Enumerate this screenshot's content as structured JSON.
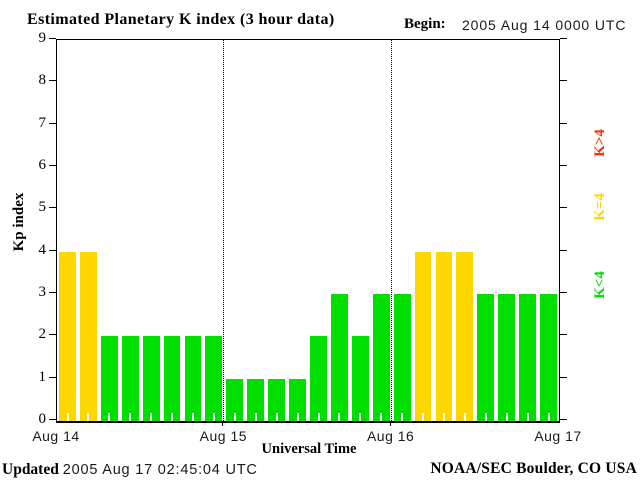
{
  "title": "Estimated Planetary K index (3 hour data)",
  "header": {
    "begin_label": "Begin:",
    "begin_value": "2005 Aug 14 0000 UTC"
  },
  "footer": {
    "updated_label": "Updated",
    "updated_value": "2005 Aug 17 02:45:04 UTC",
    "source": "NOAA/SEC Boulder, CO USA"
  },
  "chart_data": {
    "type": "bar",
    "title": "Estimated Planetary K index (3 hour data)",
    "xlabel": "Universal Time",
    "ylabel": "Kp index",
    "ylim": [
      0,
      9
    ],
    "yticks": [
      0,
      1,
      2,
      3,
      4,
      5,
      6,
      7,
      8,
      9
    ],
    "x_day_labels": [
      "Aug 14",
      "Aug 15",
      "Aug 16",
      "Aug 17"
    ],
    "bars_per_day": 8,
    "interval_hours": 3,
    "values": [
      4,
      4,
      2,
      2,
      2,
      2,
      2,
      2,
      1,
      1,
      1,
      1,
      2,
      3,
      2,
      3,
      3,
      4,
      4,
      4,
      3,
      3,
      3,
      3
    ],
    "day_gridlines": [
      "Aug 15",
      "Aug 16"
    ],
    "colors": {
      "k_below_4": "#00DF00",
      "k_equal_4": "#FFD700",
      "k_above_4": "#FF3000",
      "axis": "#000000"
    },
    "legend": [
      {
        "label": "K>4",
        "color": "#FF3000"
      },
      {
        "label": "K=4",
        "color": "#FFD700"
      },
      {
        "label": "K<4",
        "color": "#00DF00"
      }
    ],
    "legend_position": "right-rotated",
    "grid": "day-dotted-vertical-only"
  }
}
